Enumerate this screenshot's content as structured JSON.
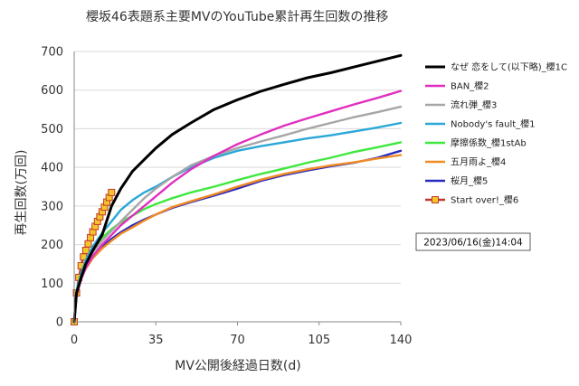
{
  "chart_data": {
    "type": "line",
    "title": "櫻坂46表題系主要MVのYouTube累計再生回数の推移",
    "xlabel": "MV公開後経過日数(d)",
    "ylabel": "再生回数(万回)",
    "xlim": [
      0,
      140
    ],
    "ylim": [
      0,
      700
    ],
    "xticks": [
      0,
      35,
      70,
      105,
      140
    ],
    "yticks": [
      0,
      100,
      200,
      300,
      400,
      500,
      600,
      700
    ],
    "grid": "horizontal",
    "legend_position": "right",
    "annotation": "2023/06/16(金)14:04",
    "series": [
      {
        "name": "なぜ 恋をして(以下略)_櫻1C",
        "color": "#000000",
        "x": [
          0,
          1,
          3,
          5,
          8,
          12,
          16,
          20,
          25,
          30,
          35,
          42,
          50,
          60,
          70,
          80,
          90,
          100,
          110,
          120,
          130,
          140
        ],
        "y": [
          0,
          75,
          115,
          150,
          185,
          225,
          300,
          345,
          390,
          420,
          450,
          485,
          515,
          550,
          575,
          597,
          615,
          632,
          645,
          660,
          675,
          690
        ]
      },
      {
        "name": "BAN_櫻2",
        "color": "#e02fc0",
        "x": [
          0,
          1,
          3,
          5,
          8,
          12,
          16,
          20,
          25,
          30,
          35,
          42,
          50,
          60,
          70,
          80,
          90,
          100,
          110,
          120,
          130,
          140
        ],
        "y": [
          0,
          70,
          110,
          140,
          170,
          200,
          225,
          250,
          275,
          300,
          325,
          360,
          395,
          430,
          460,
          485,
          508,
          527,
          545,
          563,
          580,
          598
        ]
      },
      {
        "name": "流れ弾_櫻3",
        "color": "#a6a6a6",
        "x": [
          0,
          1,
          3,
          5,
          8,
          12,
          16,
          20,
          25,
          30,
          35,
          42,
          50,
          60,
          70,
          80,
          90,
          100,
          110,
          120,
          130,
          140
        ],
        "y": [
          0,
          70,
          112,
          145,
          180,
          210,
          235,
          260,
          290,
          320,
          345,
          375,
          405,
          430,
          450,
          467,
          483,
          500,
          515,
          530,
          543,
          557
        ]
      },
      {
        "name": "Nobody's fault_櫻1",
        "color": "#2aa7d8",
        "x": [
          0,
          1,
          3,
          5,
          8,
          12,
          16,
          20,
          25,
          30,
          35,
          42,
          50,
          60,
          70,
          80,
          90,
          100,
          110,
          120,
          130,
          140
        ],
        "y": [
          0,
          80,
          125,
          160,
          195,
          230,
          260,
          290,
          315,
          335,
          350,
          375,
          400,
          425,
          443,
          455,
          465,
          475,
          483,
          493,
          503,
          515
        ]
      },
      {
        "name": "摩擦係数_櫻1stAb",
        "color": "#3ee83e",
        "x": [
          0,
          1,
          3,
          5,
          8,
          12,
          16,
          20,
          25,
          30,
          35,
          42,
          50,
          60,
          70,
          80,
          90,
          100,
          110,
          120,
          130,
          140
        ],
        "y": [
          0,
          80,
          125,
          158,
          190,
          218,
          240,
          258,
          275,
          292,
          305,
          320,
          335,
          350,
          367,
          383,
          397,
          412,
          425,
          440,
          452,
          465
        ]
      },
      {
        "name": "五月雨よ_櫻4",
        "color": "#f08a24",
        "x": [
          0,
          1,
          3,
          5,
          8,
          12,
          16,
          20,
          25,
          30,
          35,
          42,
          50,
          60,
          70,
          80,
          90,
          100,
          110,
          120,
          130,
          140
        ],
        "y": [
          0,
          70,
          112,
          138,
          165,
          190,
          210,
          228,
          245,
          262,
          278,
          297,
          312,
          330,
          350,
          368,
          383,
          395,
          405,
          413,
          423,
          432
        ]
      },
      {
        "name": "桜月_櫻5",
        "color": "#2a2ac0",
        "x": [
          0,
          1,
          3,
          5,
          8,
          12,
          16,
          20,
          25,
          30,
          35,
          42,
          50,
          60,
          70,
          80,
          90,
          100,
          110,
          120,
          130,
          140
        ],
        "y": [
          0,
          70,
          112,
          140,
          168,
          195,
          215,
          232,
          250,
          265,
          278,
          295,
          310,
          327,
          345,
          365,
          380,
          392,
          403,
          412,
          425,
          443
        ]
      },
      {
        "name": "Start over!_櫻6",
        "color": "#c0392b",
        "marker": "square",
        "marker_fill": "#f5c52a",
        "x": [
          0,
          1,
          2,
          3,
          4,
          5,
          6,
          7,
          8,
          9,
          10,
          11,
          12,
          13,
          14,
          15,
          16
        ],
        "y": [
          0,
          75,
          115,
          145,
          168,
          185,
          202,
          218,
          233,
          247,
          260,
          272,
          285,
          297,
          310,
          322,
          335
        ]
      }
    ]
  }
}
